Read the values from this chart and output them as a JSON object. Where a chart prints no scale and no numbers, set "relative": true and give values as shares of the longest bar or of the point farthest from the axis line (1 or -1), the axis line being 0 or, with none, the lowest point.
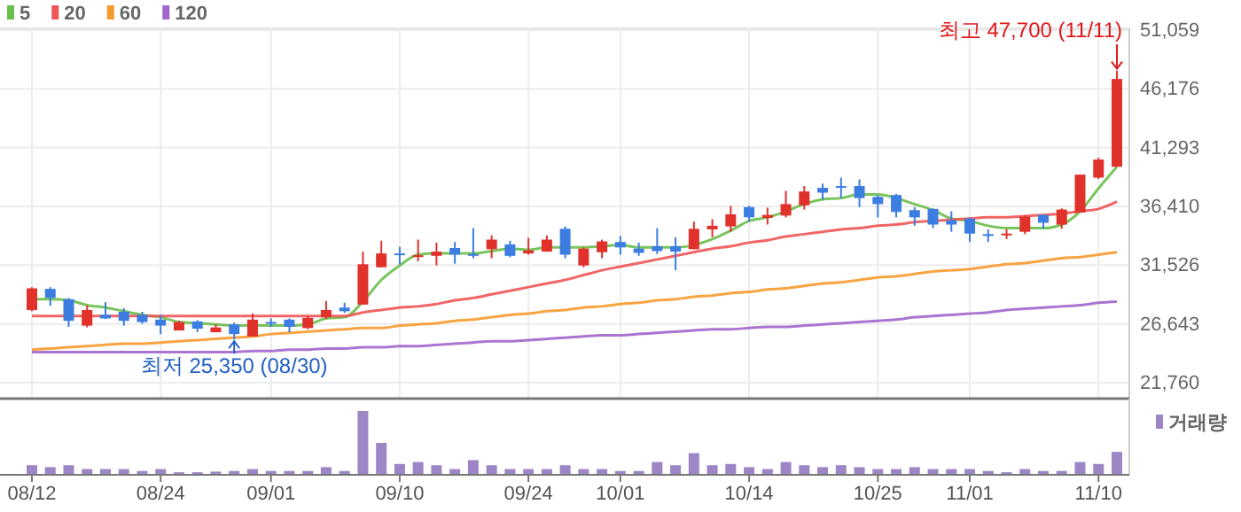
{
  "chart_data": [
    {
      "type": "candlestick",
      "categories": [
        null,
        null,
        null,
        null,
        null,
        null,
        null,
        null,
        null,
        null,
        null,
        null,
        null,
        null,
        null,
        null,
        null,
        null,
        null,
        null,
        null,
        null,
        null,
        null,
        null,
        null,
        null,
        null,
        null,
        null,
        null,
        null,
        null,
        null,
        null,
        null,
        null,
        null,
        null,
        null,
        null,
        null,
        null,
        null,
        null,
        null,
        null,
        null,
        null,
        null,
        null,
        null,
        null,
        null,
        null,
        null,
        null,
        null,
        null,
        null
      ],
      "ohlc": [
        [
          27800,
          29700,
          27700,
          29600
        ],
        [
          29550,
          29700,
          28150,
          28800
        ],
        [
          28700,
          28800,
          26400,
          26900
        ],
        [
          26500,
          28200,
          26350,
          27800
        ],
        [
          27400,
          28450,
          27050,
          27100
        ],
        [
          27650,
          27950,
          26500,
          26900
        ],
        [
          27400,
          27650,
          26650,
          26800
        ],
        [
          27000,
          27400,
          25800,
          26500
        ],
        [
          26100,
          26900,
          26100,
          26800
        ],
        [
          26850,
          26950,
          25950,
          26250
        ],
        [
          25950,
          26600,
          25950,
          26350
        ],
        [
          26600,
          26750,
          25350,
          25800
        ],
        [
          25600,
          27500,
          25600,
          27000
        ],
        [
          26800,
          27100,
          26400,
          26700
        ],
        [
          27000,
          27100,
          25950,
          26400
        ],
        [
          26300,
          27300,
          26200,
          27150
        ],
        [
          27200,
          28550,
          27050,
          27800
        ],
        [
          28000,
          28400,
          27550,
          27700
        ],
        [
          28250,
          32650,
          28250,
          31600
        ],
        [
          31350,
          33550,
          31350,
          32500
        ],
        [
          32500,
          33050,
          31600,
          32400
        ],
        [
          32200,
          33650,
          31850,
          32350
        ],
        [
          32300,
          33400,
          31500,
          32650
        ],
        [
          32950,
          33450,
          31650,
          32400
        ],
        [
          32450,
          34600,
          32100,
          32350
        ],
        [
          32850,
          34000,
          32100,
          33650
        ],
        [
          33250,
          33550,
          32200,
          32300
        ],
        [
          32500,
          33800,
          32400,
          32750
        ],
        [
          32650,
          34000,
          32650,
          33650
        ],
        [
          34550,
          34750,
          32100,
          32400
        ],
        [
          31500,
          33000,
          31350,
          32900
        ],
        [
          32600,
          33650,
          32100,
          33500
        ],
        [
          33450,
          33950,
          32400,
          33000
        ],
        [
          32900,
          33400,
          32300,
          32550
        ],
        [
          33100,
          34600,
          32450,
          32700
        ],
        [
          33100,
          33850,
          31100,
          32650
        ],
        [
          32850,
          35150,
          32850,
          34550
        ],
        [
          34500,
          35350,
          33850,
          34800
        ],
        [
          34750,
          36450,
          34300,
          35750
        ],
        [
          36350,
          36450,
          35150,
          35500
        ],
        [
          35450,
          36300,
          34900,
          35700
        ],
        [
          35650,
          37700,
          35500,
          36600
        ],
        [
          36500,
          38100,
          36150,
          37650
        ],
        [
          37950,
          38300,
          36950,
          37550
        ],
        [
          38100,
          38800,
          37100,
          37950
        ],
        [
          38100,
          38650,
          36350,
          37100
        ],
        [
          37200,
          37350,
          35500,
          36600
        ],
        [
          37350,
          37450,
          35500,
          35950
        ],
        [
          36100,
          36350,
          34800,
          35500
        ],
        [
          36200,
          36250,
          34600,
          34900
        ],
        [
          35250,
          36000,
          34300,
          34900
        ],
        [
          35400,
          35500,
          33450,
          34150
        ],
        [
          34100,
          34500,
          33450,
          34000
        ],
        [
          34050,
          34500,
          33700,
          34150
        ],
        [
          34300,
          35650,
          34100,
          35550
        ],
        [
          35700,
          35700,
          34550,
          35050
        ],
        [
          34900,
          36250,
          34550,
          36150
        ],
        [
          35900,
          39050,
          35900,
          39050
        ],
        [
          38800,
          40450,
          38700,
          40300
        ],
        [
          39700,
          47700,
          39700,
          47000
        ]
      ],
      "colors": [
        "#e0312b",
        "#3b7de0",
        "#3b7de0",
        "#e0312b",
        "#3b7de0",
        "#3b7de0",
        "#3b7de0",
        "#3b7de0",
        "#e0312b",
        "#3b7de0",
        "#e0312b",
        "#3b7de0",
        "#e0312b",
        "#3b7de0",
        "#3b7de0",
        "#e0312b",
        "#e0312b",
        "#3b7de0",
        "#e0312b",
        "#e0312b",
        "#3b7de0",
        "#e0312b",
        "#e0312b",
        "#3b7de0",
        "#3b7de0",
        "#e0312b",
        "#3b7de0",
        "#e0312b",
        "#e0312b",
        "#3b7de0",
        "#e0312b",
        "#e0312b",
        "#3b7de0",
        "#3b7de0",
        "#3b7de0",
        "#3b7de0",
        "#e0312b",
        "#e0312b",
        "#e0312b",
        "#3b7de0",
        "#e0312b",
        "#e0312b",
        "#e0312b",
        "#3b7de0",
        "#3b7de0",
        "#3b7de0",
        "#3b7de0",
        "#3b7de0",
        "#3b7de0",
        "#3b7de0",
        "#3b7de0",
        "#3b7de0",
        "#3b7de0",
        "#e0312b",
        "#e0312b",
        "#3b7de0",
        "#e0312b",
        "#e0312b",
        "#e0312b",
        "#e0312b"
      ],
      "series": [
        {
          "type": "line",
          "name": "5",
          "color": "#6abf4b",
          "values": [
            28700,
            28700,
            28600,
            28200,
            28000,
            27700,
            27400,
            27200,
            26800,
            26700,
            26600,
            26500,
            26500,
            26500,
            26500,
            26600,
            27100,
            27200,
            28500,
            30300,
            31500,
            32400,
            32500,
            32500,
            32500,
            32700,
            32900,
            32800,
            33000,
            33000,
            33000,
            33100,
            33200,
            33000,
            33000,
            33000,
            33200,
            33700,
            34400,
            35200,
            35500,
            36000,
            36600,
            37000,
            37100,
            37400,
            37400,
            37100,
            36600,
            36100,
            35400,
            35200,
            34800,
            34600,
            34600,
            34600,
            34900,
            36000,
            37900,
            39700
          ]
        },
        {
          "type": "line",
          "name": "20",
          "color": "#ee5555",
          "values": [
            27300,
            27300,
            27300,
            27300,
            27300,
            27300,
            27300,
            27300,
            27300,
            27300,
            27300,
            27300,
            27300,
            27300,
            27300,
            27300,
            27300,
            27300,
            27600,
            27800,
            28000,
            28100,
            28300,
            28600,
            28800,
            29100,
            29400,
            29700,
            30000,
            30300,
            30700,
            31100,
            31400,
            31700,
            32000,
            32300,
            32600,
            32900,
            33100,
            33400,
            33600,
            33900,
            34100,
            34300,
            34500,
            34600,
            34800,
            34900,
            35100,
            35200,
            35300,
            35400,
            35500,
            35500,
            35600,
            35700,
            35800,
            36000,
            36200,
            36800
          ]
        },
        {
          "type": "line",
          "name": "60",
          "color": "#f79a2e",
          "values": [
            24500,
            24600,
            24700,
            24800,
            24900,
            25000,
            25000,
            25100,
            25200,
            25300,
            25400,
            25500,
            25600,
            25800,
            25900,
            26000,
            26100,
            26200,
            26300,
            26300,
            26500,
            26600,
            26700,
            26900,
            27000,
            27200,
            27400,
            27500,
            27700,
            27800,
            28000,
            28100,
            28300,
            28400,
            28600,
            28700,
            28900,
            29000,
            29200,
            29300,
            29500,
            29600,
            29800,
            30000,
            30100,
            30300,
            30500,
            30600,
            30800,
            31000,
            31100,
            31200,
            31400,
            31600,
            31700,
            31900,
            32100,
            32200,
            32400,
            32600
          ]
        },
        {
          "type": "line",
          "name": "120",
          "color": "#a066cc",
          "values": [
            24300,
            24300,
            24300,
            24300,
            24300,
            24300,
            24300,
            24300,
            24300,
            24300,
            24300,
            24300,
            24400,
            24400,
            24500,
            24500,
            24600,
            24600,
            24700,
            24700,
            24800,
            24800,
            24900,
            25000,
            25100,
            25200,
            25200,
            25300,
            25400,
            25500,
            25600,
            25700,
            25700,
            25800,
            25900,
            26000,
            26100,
            26200,
            26200,
            26300,
            26400,
            26400,
            26500,
            26600,
            26700,
            26800,
            26900,
            27000,
            27200,
            27300,
            27400,
            27500,
            27600,
            27800,
            27900,
            28000,
            28100,
            28200,
            28400,
            28500
          ]
        }
      ],
      "ylim": [
        21760,
        51059
      ],
      "yticks": [
        {
          "value": 21760,
          "label": "21,760"
        },
        {
          "value": 26643,
          "label": "26,643"
        },
        {
          "value": 31526,
          "label": "31,526"
        },
        {
          "value": 36410,
          "label": "36,410"
        },
        {
          "value": 41293,
          "label": "41,293"
        },
        {
          "value": 46176,
          "label": "46,176"
        },
        {
          "value": 51059,
          "label": "51,059"
        }
      ],
      "grid": true,
      "legend": "top left",
      "tick_labels": "y",
      "annotations": [
        "최고 47,700 (11/11)",
        "최저 25,350 (08/30)"
      ]
    },
    {
      "type": "bar",
      "relative": true,
      "categories": [
        "08/12",
        null,
        null,
        null,
        null,
        null,
        null,
        "08/24",
        null,
        null,
        null,
        null,
        null,
        "09/01",
        null,
        null,
        null,
        null,
        null,
        null,
        "09/10",
        null,
        null,
        null,
        null,
        null,
        null,
        "09/24",
        null,
        null,
        null,
        null,
        "10/01",
        null,
        null,
        null,
        null,
        null,
        null,
        "10/14",
        null,
        null,
        null,
        null,
        null,
        null,
        "10/25",
        null,
        null,
        null,
        null,
        "11/01",
        null,
        null,
        null,
        null,
        null,
        null,
        "11/10",
        null
      ],
      "series": [
        {
          "name": "거래량",
          "color": "#9d86c6",
          "values": [
            0.15,
            0.12,
            0.15,
            0.09,
            0.09,
            0.09,
            0.06,
            0.09,
            0.04,
            0.04,
            0.05,
            0.06,
            0.09,
            0.06,
            0.06,
            0.06,
            0.12,
            0.06,
            1,
            0.5,
            0.17,
            0.2,
            0.15,
            0.09,
            0.23,
            0.15,
            0.09,
            0.09,
            0.09,
            0.15,
            0.09,
            0.09,
            0.06,
            0.06,
            0.2,
            0.15,
            0.34,
            0.15,
            0.17,
            0.12,
            0.09,
            0.2,
            0.15,
            0.12,
            0.15,
            0.12,
            0.09,
            0.09,
            0.12,
            0.09,
            0.09,
            0.09,
            0.06,
            0.04,
            0.09,
            0.06,
            0.06,
            0.2,
            0.17,
            0.36
          ]
        }
      ],
      "legend": "top right",
      "tick_labels": "x"
    }
  ]
}
